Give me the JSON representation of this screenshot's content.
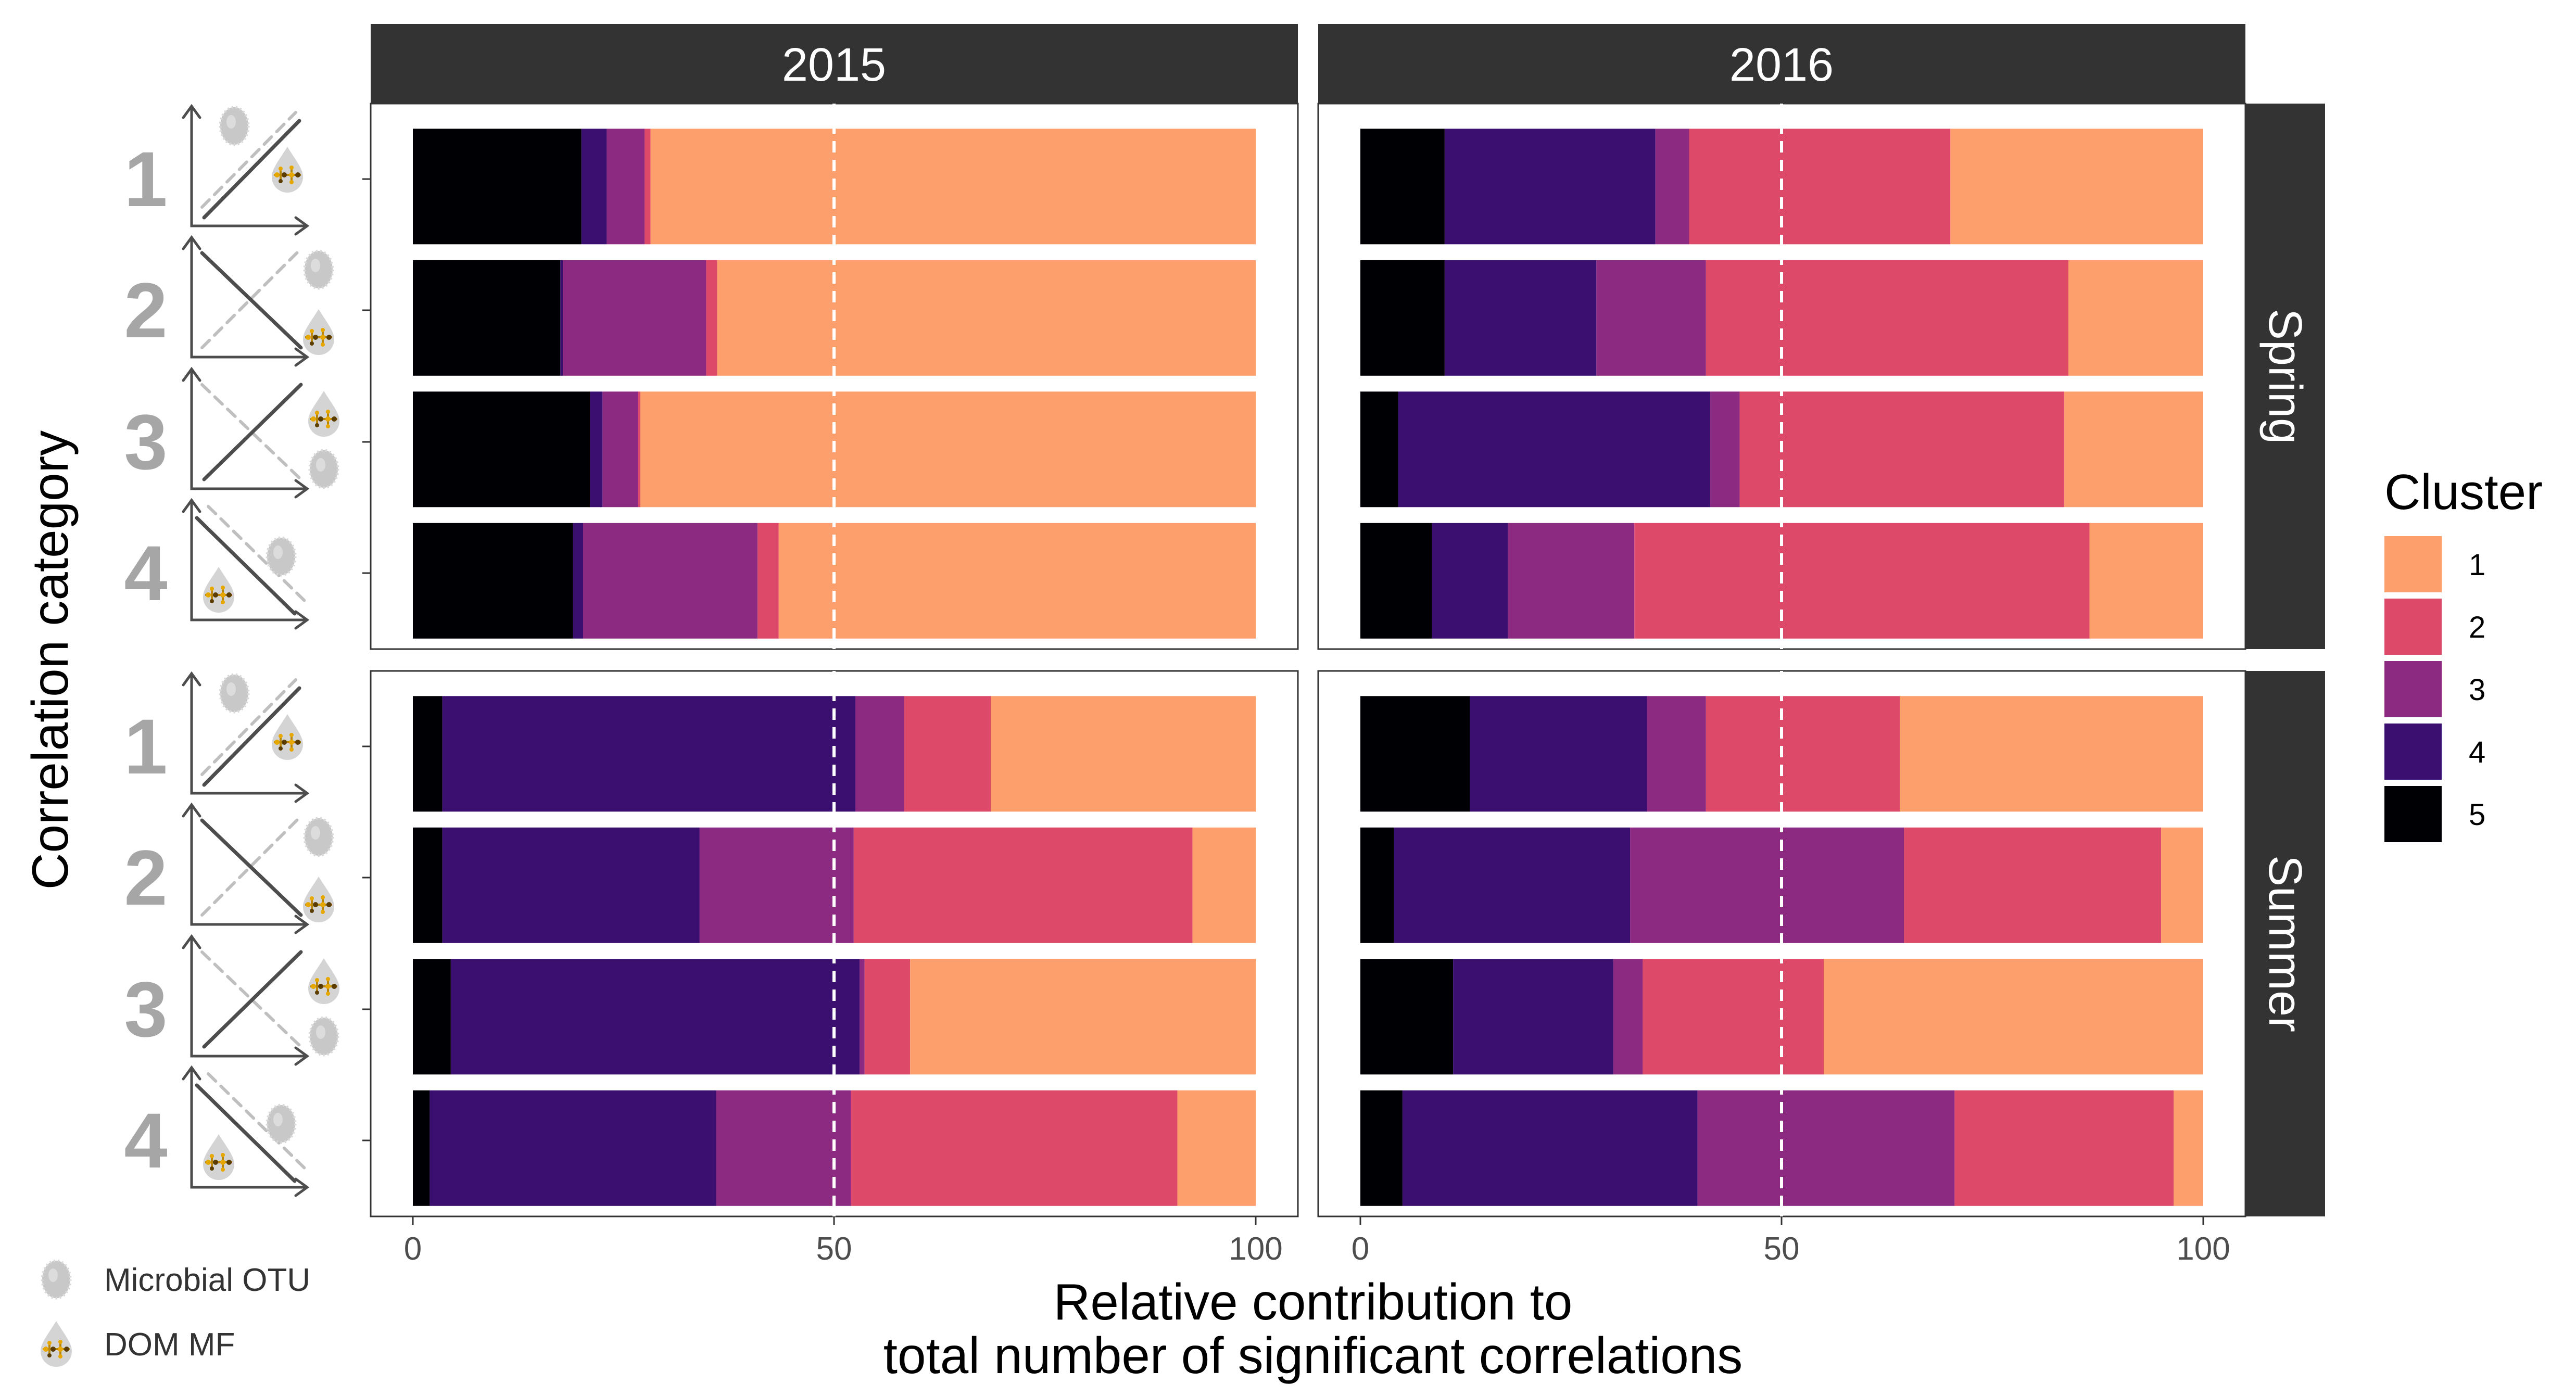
{
  "chart_data": {
    "type": "bar",
    "orientation": "horizontal",
    "stacked": true,
    "facet_columns": [
      "2015",
      "2016"
    ],
    "facet_rows": [
      "Spring",
      "Summer"
    ],
    "categories": [
      "1",
      "2",
      "3",
      "4"
    ],
    "xlabel_line1": "Relative contribution to",
    "xlabel_line2": "total number of significant correlations",
    "ylabel": "Correlation category",
    "xlim": [
      0,
      100
    ],
    "xticks": [
      "0",
      "50",
      "100"
    ],
    "reference_line_x": 50,
    "legend": {
      "title": "Cluster",
      "position": "right",
      "entries": [
        {
          "label": "1",
          "color": "#FD9F6C"
        },
        {
          "label": "2",
          "color": "#DD4968"
        },
        {
          "label": "3",
          "color": "#8C2981"
        },
        {
          "label": "4",
          "color": "#3B0F70"
        },
        {
          "label": "5",
          "color": "#000004"
        }
      ]
    },
    "stack_order": [
      "5",
      "4",
      "3",
      "2",
      "1"
    ],
    "panels": [
      {
        "year": "2015",
        "season": "Spring",
        "bars": [
          {
            "category": "1",
            "values": {
              "5": 20,
              "4": 3,
              "3": 4.5,
              "2": 0.7,
              "1": 71.8
            }
          },
          {
            "category": "2",
            "values": {
              "5": 17.5,
              "4": 0.3,
              "3": 17,
              "2": 1.3,
              "1": 63.9
            }
          },
          {
            "category": "3",
            "values": {
              "5": 21,
              "4": 1.5,
              "3": 4.2,
              "2": 0.3,
              "1": 73
            }
          },
          {
            "category": "4",
            "values": {
              "5": 19,
              "4": 1.2,
              "3": 20.7,
              "2": 2.5,
              "1": 56.6
            }
          }
        ]
      },
      {
        "year": "2016",
        "season": "Spring",
        "bars": [
          {
            "category": "1",
            "values": {
              "5": 10,
              "4": 25,
              "3": 4,
              "2": 31,
              "1": 30
            }
          },
          {
            "category": "2",
            "values": {
              "5": 10,
              "4": 18,
              "3": 13,
              "2": 43,
              "1": 16
            }
          },
          {
            "category": "3",
            "values": {
              "5": 4.5,
              "4": 37,
              "3": 3.5,
              "2": 38.5,
              "1": 16.5
            }
          },
          {
            "category": "4",
            "values": {
              "5": 8.5,
              "4": 9,
              "3": 15,
              "2": 54,
              "1": 13.5
            }
          }
        ]
      },
      {
        "year": "2015",
        "season": "Summer",
        "bars": [
          {
            "category": "1",
            "values": {
              "5": 3.5,
              "4": 49,
              "3": 5.8,
              "2": 10.3,
              "1": 31.4
            }
          },
          {
            "category": "2",
            "values": {
              "5": 3.5,
              "4": 30.5,
              "3": 18.3,
              "2": 40.2,
              "1": 7.5
            }
          },
          {
            "category": "3",
            "values": {
              "5": 4.5,
              "4": 48.5,
              "3": 0.6,
              "2": 5.4,
              "1": 41
            }
          },
          {
            "category": "4",
            "values": {
              "5": 2,
              "4": 34,
              "3": 16,
              "2": 38.7,
              "1": 9.3
            }
          }
        ]
      },
      {
        "year": "2016",
        "season": "Summer",
        "bars": [
          {
            "category": "1",
            "values": {
              "5": 13,
              "4": 21,
              "3": 7,
              "2": 23,
              "1": 36
            }
          },
          {
            "category": "2",
            "values": {
              "5": 4,
              "4": 28,
              "3": 32.5,
              "2": 30.5,
              "1": 5
            }
          },
          {
            "category": "3",
            "values": {
              "5": 11,
              "4": 19,
              "3": 3.5,
              "2": 21.5,
              "1": 45
            }
          },
          {
            "category": "4",
            "values": {
              "5": 5,
              "4": 35,
              "3": 30.5,
              "2": 26,
              "1": 3.5
            }
          }
        ]
      }
    ],
    "grid": false
  },
  "annotations": {
    "icon_legend": [
      {
        "icon": "microbial-otu-icon",
        "label": "Microbial OTU"
      },
      {
        "icon": "dom-mf-icon",
        "label": "DOM MF"
      }
    ],
    "category_glyphs": [
      {
        "category": "1",
        "icon": "positive-correlation-icon"
      },
      {
        "category": "2",
        "icon": "negative-correlation-icon"
      },
      {
        "category": "3",
        "icon": "positive-crossing-icon"
      },
      {
        "category": "4",
        "icon": "negative-crossing-icon"
      }
    ]
  }
}
